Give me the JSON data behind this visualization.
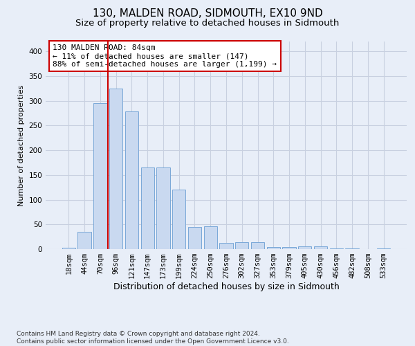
{
  "title1": "130, MALDEN ROAD, SIDMOUTH, EX10 9ND",
  "title2": "Size of property relative to detached houses in Sidmouth",
  "xlabel": "Distribution of detached houses by size in Sidmouth",
  "ylabel": "Number of detached properties",
  "bar_labels": [
    "18sqm",
    "44sqm",
    "70sqm",
    "96sqm",
    "121sqm",
    "147sqm",
    "173sqm",
    "199sqm",
    "224sqm",
    "250sqm",
    "276sqm",
    "302sqm",
    "327sqm",
    "353sqm",
    "379sqm",
    "405sqm",
    "430sqm",
    "456sqm",
    "482sqm",
    "508sqm",
    "533sqm"
  ],
  "bar_values": [
    3,
    35,
    295,
    325,
    278,
    165,
    165,
    120,
    45,
    46,
    13,
    14,
    14,
    4,
    4,
    6,
    6,
    2,
    1,
    0,
    1
  ],
  "bar_color": "#c9d9f0",
  "bar_edge_color": "#7aa8d8",
  "vline_x": 2.5,
  "vline_color": "#cc0000",
  "annotation_line1": "130 MALDEN ROAD: 84sqm",
  "annotation_line2": "← 11% of detached houses are smaller (147)",
  "annotation_line3": "88% of semi-detached houses are larger (1,199) →",
  "annotation_box_color": "#ffffff",
  "annotation_box_edge": "#cc0000",
  "ylim": [
    0,
    420
  ],
  "yticks": [
    0,
    50,
    100,
    150,
    200,
    250,
    300,
    350,
    400
  ],
  "grid_color": "#c8d0e0",
  "bg_color": "#e8eef8",
  "footnote": "Contains HM Land Registry data © Crown copyright and database right 2024.\nContains public sector information licensed under the Open Government Licence v3.0.",
  "title1_fontsize": 11,
  "title2_fontsize": 9.5,
  "xlabel_fontsize": 9,
  "ylabel_fontsize": 8,
  "tick_fontsize": 7.5,
  "annotation_fontsize": 8,
  "footnote_fontsize": 6.5
}
